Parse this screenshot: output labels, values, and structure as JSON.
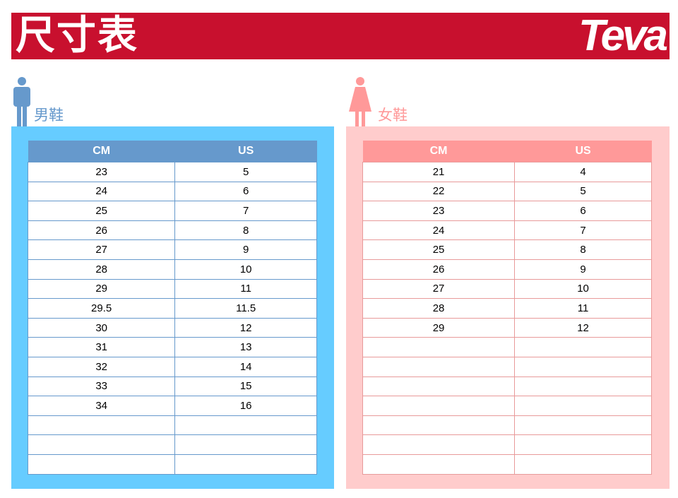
{
  "header": {
    "title": "尺寸表",
    "logo": "Teva"
  },
  "men": {
    "label": "男鞋",
    "icon": "man-icon",
    "color": "#6699cc",
    "panel_color": "#66ccff",
    "columns": [
      "CM",
      "US"
    ],
    "rows": [
      [
        "23",
        "5"
      ],
      [
        "24",
        "6"
      ],
      [
        "25",
        "7"
      ],
      [
        "26",
        "8"
      ],
      [
        "27",
        "9"
      ],
      [
        "28",
        "10"
      ],
      [
        "29",
        "11"
      ],
      [
        "29.5",
        "11.5"
      ],
      [
        "30",
        "12"
      ],
      [
        "31",
        "13"
      ],
      [
        "32",
        "14"
      ],
      [
        "33",
        "15"
      ],
      [
        "34",
        "16"
      ],
      [
        "",
        ""
      ],
      [
        "",
        ""
      ],
      [
        "",
        ""
      ]
    ]
  },
  "women": {
    "label": "女鞋",
    "icon": "woman-icon",
    "color": "#ff9999",
    "panel_color": "#ffcccc",
    "columns": [
      "CM",
      "US"
    ],
    "rows": [
      [
        "21",
        "4"
      ],
      [
        "22",
        "5"
      ],
      [
        "23",
        "6"
      ],
      [
        "24",
        "7"
      ],
      [
        "25",
        "8"
      ],
      [
        "26",
        "9"
      ],
      [
        "27",
        "10"
      ],
      [
        "28",
        "11"
      ],
      [
        "29",
        "12"
      ],
      [
        "",
        ""
      ],
      [
        "",
        ""
      ],
      [
        "",
        ""
      ],
      [
        "",
        ""
      ],
      [
        "",
        ""
      ],
      [
        "",
        ""
      ],
      [
        "",
        ""
      ]
    ]
  }
}
